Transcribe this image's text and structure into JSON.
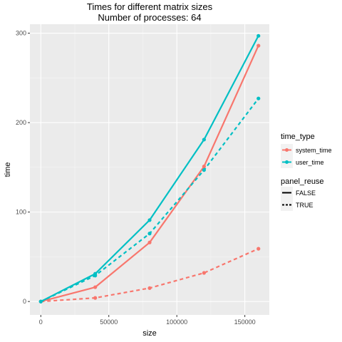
{
  "chart_data": {
    "type": "line",
    "title": "Times for different matrix sizes",
    "subtitle": "Number of processes: 64",
    "xlabel": "size",
    "ylabel": "time",
    "xlim": [
      -8000,
      168000
    ],
    "ylim": [
      -15,
      310
    ],
    "x_ticks": [
      0,
      50000,
      100000,
      150000
    ],
    "y_ticks": [
      0,
      100,
      200,
      300
    ],
    "x_minor": [
      25000,
      75000,
      125000
    ],
    "y_minor": [
      50,
      150,
      250
    ],
    "grid": true,
    "background": "#ebebeb",
    "legend_position": "right",
    "legends": {
      "color": {
        "title": "time_type",
        "entries": [
          {
            "label": "system_time",
            "color": "#f8766d"
          },
          {
            "label": "user_time",
            "color": "#00bfc4"
          }
        ]
      },
      "linetype": {
        "title": "panel_reuse",
        "entries": [
          {
            "label": "FALSE",
            "style": "solid"
          },
          {
            "label": "TRUE",
            "style": "dashed"
          }
        ]
      }
    },
    "series": [
      {
        "time_type": "system_time",
        "panel_reuse": "FALSE",
        "color": "#f8766d",
        "style": "solid",
        "x": [
          0,
          40000,
          80000,
          120000,
          160000
        ],
        "y": [
          0,
          16,
          66,
          151,
          286
        ]
      },
      {
        "time_type": "system_time",
        "panel_reuse": "TRUE",
        "color": "#f8766d",
        "style": "dashed",
        "x": [
          0,
          40000,
          80000,
          120000,
          160000
        ],
        "y": [
          0,
          4,
          15,
          32,
          59
        ]
      },
      {
        "time_type": "user_time",
        "panel_reuse": "FALSE",
        "color": "#00bfc4",
        "style": "solid",
        "x": [
          0,
          40000,
          80000,
          120000,
          160000
        ],
        "y": [
          0,
          31,
          91,
          181,
          297
        ]
      },
      {
        "time_type": "user_time",
        "panel_reuse": "TRUE",
        "color": "#00bfc4",
        "style": "dashed",
        "x": [
          0,
          40000,
          80000,
          120000,
          160000
        ],
        "y": [
          0,
          29,
          76,
          147,
          227
        ]
      }
    ]
  }
}
